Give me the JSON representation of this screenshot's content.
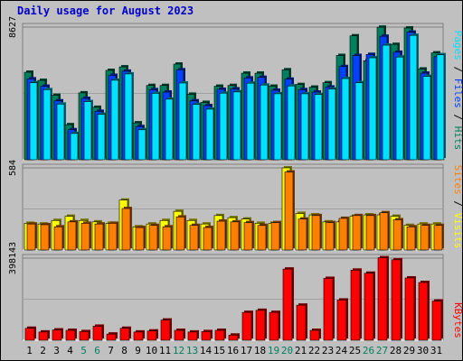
{
  "title": "Daily usage for August 2023",
  "colors": {
    "hits": "#00805c",
    "files": "#0040ff",
    "pages": "#00e0ff",
    "visits": "#ffff00",
    "sites": "#ff8000",
    "kbytes": "#ff0000",
    "weekend_day": "#00805c",
    "weekday": "#000000"
  },
  "chart_data": [
    {
      "type": "bar",
      "panel": "hits_files_pages",
      "ylabel_max": "8627",
      "ylim": [
        0,
        8627
      ],
      "legend": [
        "Pages",
        "Files",
        "Hits"
      ],
      "categories": [
        "1",
        "2",
        "3",
        "4",
        "5",
        "6",
        "7",
        "8",
        "9",
        "10",
        "11",
        "12",
        "13",
        "14",
        "15",
        "16",
        "17",
        "18",
        "19",
        "20",
        "21",
        "22",
        "23",
        "24",
        "25",
        "26",
        "27",
        "28",
        "29",
        "30",
        "31"
      ],
      "weekend_days": [
        "5",
        "6",
        "12",
        "13",
        "19",
        "20",
        "26",
        "27"
      ],
      "series": [
        {
          "name": "Hits",
          "values": [
            5690,
            5160,
            4190,
            2280,
            4350,
            3410,
            5810,
            6040,
            2400,
            4830,
            4830,
            6220,
            4260,
            3730,
            4780,
            4830,
            5630,
            5630,
            4780,
            5850,
            4890,
            4720,
            5010,
            6780,
            8060,
            6440,
            8620,
            7500,
            8570,
            5900,
            6950
          ]
        },
        {
          "name": "Files",
          "values": [
            5260,
            4780,
            3830,
            1950,
            3990,
            3150,
            5490,
            5760,
            2160,
            4560,
            4400,
            5850,
            3830,
            3520,
            4580,
            4610,
            5320,
            5360,
            4520,
            5240,
            4560,
            4400,
            4730,
            6060,
            6780,
            6850,
            8030,
            6990,
            8300,
            5630,
            6700
          ]
        },
        {
          "name": "Pages",
          "values": [
            5010,
            4560,
            3620,
            1710,
            3780,
            2950,
            5170,
            5580,
            1950,
            4320,
            3940,
            4990,
            3600,
            3290,
            4330,
            4410,
            4980,
            4860,
            4290,
            4800,
            4290,
            4240,
            4600,
            5280,
            5010,
            6630,
            7450,
            6680,
            8090,
            5420,
            6830
          ]
        }
      ]
    },
    {
      "type": "bar",
      "panel": "visits_sites",
      "ylabel_max": "584",
      "ylim": [
        0,
        584
      ],
      "legend": [
        "Sites",
        "Visits"
      ],
      "categories": [
        "1",
        "2",
        "3",
        "4",
        "5",
        "6",
        "7",
        "8",
        "9",
        "10",
        "11",
        "12",
        "13",
        "14",
        "15",
        "16",
        "17",
        "18",
        "19",
        "20",
        "21",
        "22",
        "23",
        "24",
        "25",
        "26",
        "27",
        "28",
        "29",
        "30",
        "31"
      ],
      "series": [
        {
          "name": "Visits",
          "values": [
            190,
            185,
            210,
            240,
            210,
            200,
            190,
            355,
            165,
            185,
            210,
            275,
            210,
            185,
            245,
            230,
            220,
            190,
            190,
            584,
            260,
            250,
            200,
            200,
            240,
            250,
            250,
            240,
            175,
            185,
            185
          ]
        },
        {
          "name": "Sites",
          "values": [
            185,
            180,
            165,
            200,
            190,
            185,
            190,
            295,
            160,
            175,
            165,
            235,
            175,
            160,
            205,
            200,
            195,
            175,
            195,
            555,
            220,
            245,
            195,
            225,
            245,
            245,
            265,
            215,
            165,
            175,
            175
          ]
        }
      ]
    },
    {
      "type": "bar",
      "panel": "kbytes",
      "ylabel_max": "398143",
      "ylim": [
        0,
        398143
      ],
      "legend": [
        "KBytes"
      ],
      "categories": [
        "1",
        "2",
        "3",
        "4",
        "5",
        "6",
        "7",
        "8",
        "9",
        "10",
        "11",
        "12",
        "13",
        "14",
        "15",
        "16",
        "17",
        "18",
        "19",
        "20",
        "21",
        "22",
        "23",
        "24",
        "25",
        "26",
        "27",
        "28",
        "29",
        "30",
        "31"
      ],
      "series": [
        {
          "name": "KBytes",
          "values": [
            58000,
            40000,
            50000,
            48000,
            42000,
            68000,
            30000,
            58000,
            40000,
            45000,
            98000,
            48000,
            40000,
            42000,
            48000,
            25000,
            135000,
            145000,
            135000,
            345000,
            170000,
            48000,
            300000,
            195000,
            340000,
            325000,
            400000,
            390000,
            302000,
            280000,
            190000
          ]
        }
      ]
    }
  ]
}
